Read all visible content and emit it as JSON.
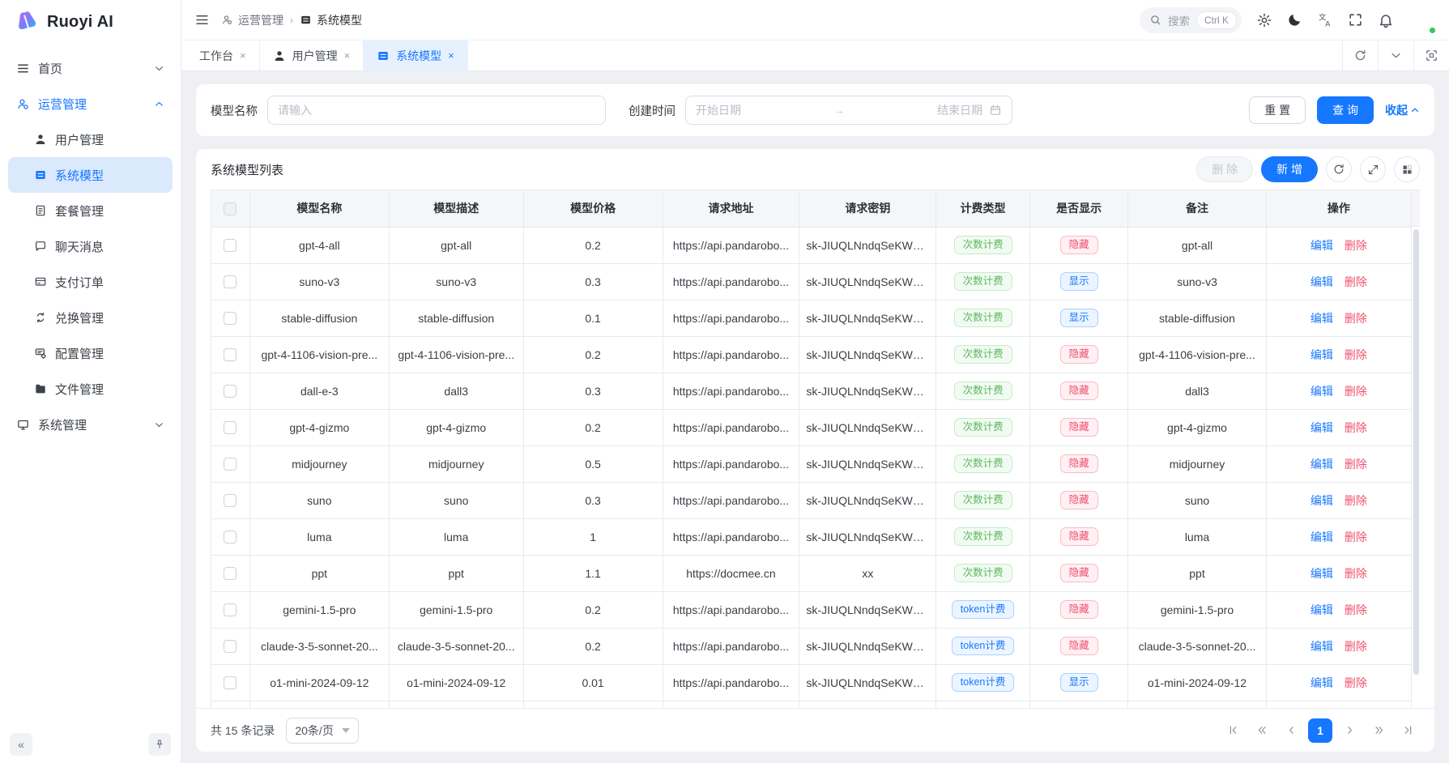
{
  "app": {
    "title": "Ruoyi AI"
  },
  "colors": {
    "primary": "#1677ff",
    "success": "#58b85c",
    "danger": "#f0506e"
  },
  "sidebar": {
    "home": {
      "label": "首页"
    },
    "operations": {
      "label": "运营管理",
      "children": [
        {
          "label": "用户管理",
          "icon": "user"
        },
        {
          "label": "系统模型",
          "icon": "list",
          "active": true
        },
        {
          "label": "套餐管理",
          "icon": "doc"
        },
        {
          "label": "聊天消息",
          "icon": "chat"
        },
        {
          "label": "支付订单",
          "icon": "card"
        },
        {
          "label": "兑换管理",
          "icon": "exchange"
        },
        {
          "label": "配置管理",
          "icon": "config"
        },
        {
          "label": "文件管理",
          "icon": "folder"
        }
      ]
    },
    "system": {
      "label": "系统管理"
    }
  },
  "header": {
    "breadcrumb": {
      "parent": "运营管理",
      "current": "系统模型"
    },
    "search": {
      "placeholder": "搜索",
      "shortcut": "Ctrl K"
    }
  },
  "tabs": [
    {
      "label": "工作台"
    },
    {
      "label": "用户管理",
      "icon": "user"
    },
    {
      "label": "系统模型",
      "icon": "list",
      "active": true
    }
  ],
  "filter": {
    "model_name_label": "模型名称",
    "model_name_placeholder": "请输入",
    "create_time_label": "创建时间",
    "date_start_placeholder": "开始日期",
    "date_end_placeholder": "结束日期",
    "reset_label": "重 置",
    "search_label": "查 询",
    "collapse_label": "收起"
  },
  "table": {
    "title": "系统模型列表",
    "delete_label": "删 除",
    "add_label": "新 增",
    "columns": [
      "模型名称",
      "模型描述",
      "模型价格",
      "请求地址",
      "请求密钥",
      "计费类型",
      "是否显示",
      "备注",
      "操作"
    ],
    "edit_label": "编辑",
    "row_delete_label": "删除",
    "rows": [
      {
        "name": "gpt-4-all",
        "desc": "gpt-all",
        "price": "0.2",
        "url": "https://api.pandarobo...",
        "key": "sk-JIUQLNndqSeKWU...",
        "billing": "次数计费",
        "billing_color": "g",
        "show": "隐藏",
        "show_color": "r",
        "remark": "gpt-all"
      },
      {
        "name": "suno-v3",
        "desc": "suno-v3",
        "price": "0.3",
        "url": "https://api.pandarobo...",
        "key": "sk-JIUQLNndqSeKWU...",
        "billing": "次数计费",
        "billing_color": "g",
        "show": "显示",
        "show_color": "b",
        "remark": "suno-v3"
      },
      {
        "name": "stable-diffusion",
        "desc": "stable-diffusion",
        "price": "0.1",
        "url": "https://api.pandarobo...",
        "key": "sk-JIUQLNndqSeKWU...",
        "billing": "次数计费",
        "billing_color": "g",
        "show": "显示",
        "show_color": "b",
        "remark": "stable-diffusion"
      },
      {
        "name": "gpt-4-1106-vision-pre...",
        "desc": "gpt-4-1106-vision-pre...",
        "price": "0.2",
        "url": "https://api.pandarobo...",
        "key": "sk-JIUQLNndqSeKWU...",
        "billing": "次数计费",
        "billing_color": "g",
        "show": "隐藏",
        "show_color": "r",
        "remark": "gpt-4-1106-vision-pre..."
      },
      {
        "name": "dall-e-3",
        "desc": "dall3",
        "price": "0.3",
        "url": "https://api.pandarobo...",
        "key": "sk-JIUQLNndqSeKWU...",
        "billing": "次数计费",
        "billing_color": "g",
        "show": "隐藏",
        "show_color": "r",
        "remark": "dall3"
      },
      {
        "name": "gpt-4-gizmo",
        "desc": "gpt-4-gizmo",
        "price": "0.2",
        "url": "https://api.pandarobo...",
        "key": "sk-JIUQLNndqSeKWU...",
        "billing": "次数计费",
        "billing_color": "g",
        "show": "隐藏",
        "show_color": "r",
        "remark": "gpt-4-gizmo"
      },
      {
        "name": "midjourney",
        "desc": "midjourney",
        "price": "0.5",
        "url": "https://api.pandarobo...",
        "key": "sk-JIUQLNndqSeKWU...",
        "billing": "次数计费",
        "billing_color": "g",
        "show": "隐藏",
        "show_color": "r",
        "remark": "midjourney"
      },
      {
        "name": "suno",
        "desc": "suno",
        "price": "0.3",
        "url": "https://api.pandarobo...",
        "key": "sk-JIUQLNndqSeKWU...",
        "billing": "次数计费",
        "billing_color": "g",
        "show": "隐藏",
        "show_color": "r",
        "remark": "suno"
      },
      {
        "name": "luma",
        "desc": "luma",
        "price": "1",
        "url": "https://api.pandarobo...",
        "key": "sk-JIUQLNndqSeKWU...",
        "billing": "次数计费",
        "billing_color": "g",
        "show": "隐藏",
        "show_color": "r",
        "remark": "luma"
      },
      {
        "name": "ppt",
        "desc": "ppt",
        "price": "1.1",
        "url": "https://docmee.cn",
        "key": "xx",
        "billing": "次数计费",
        "billing_color": "g",
        "show": "隐藏",
        "show_color": "r",
        "remark": "ppt"
      },
      {
        "name": "gemini-1.5-pro",
        "desc": "gemini-1.5-pro",
        "price": "0.2",
        "url": "https://api.pandarobo...",
        "key": "sk-JIUQLNndqSeKWU...",
        "billing": "token计费",
        "billing_color": "b",
        "show": "隐藏",
        "show_color": "r",
        "remark": "gemini-1.5-pro"
      },
      {
        "name": "claude-3-5-sonnet-20...",
        "desc": "claude-3-5-sonnet-20...",
        "price": "0.2",
        "url": "https://api.pandarobo...",
        "key": "sk-JIUQLNndqSeKWU...",
        "billing": "token计费",
        "billing_color": "b",
        "show": "隐藏",
        "show_color": "r",
        "remark": "claude-3-5-sonnet-20..."
      },
      {
        "name": "o1-mini-2024-09-12",
        "desc": "o1-mini-2024-09-12",
        "price": "0.01",
        "url": "https://api.pandarobo...",
        "key": "sk-JIUQLNndqSeKWU...",
        "billing": "token计费",
        "billing_color": "b",
        "show": "显示",
        "show_color": "b",
        "remark": "o1-mini-2024-09-12"
      }
    ]
  },
  "pagination": {
    "total_text": "共 15 条记录",
    "page_size": "20条/页",
    "current": "1"
  }
}
